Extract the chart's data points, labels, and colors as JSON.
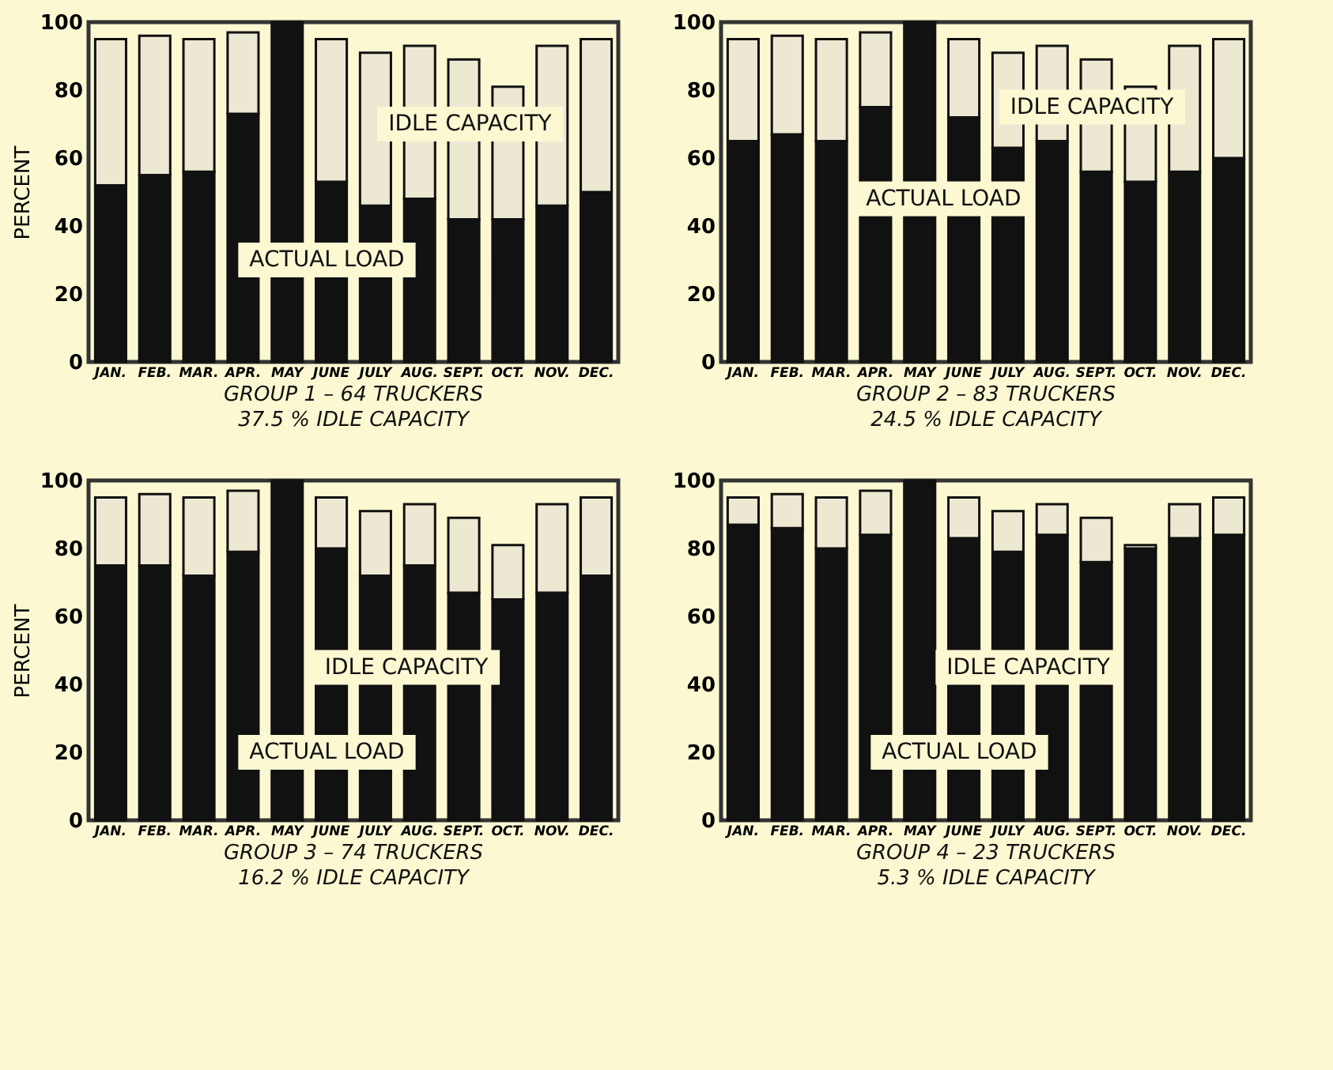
{
  "chart_data": [
    {
      "type": "bar",
      "title": "GROUP 1 – 64 TRUCKERS",
      "subtitle": "37.5 % IDLE CAPACITY",
      "ylabel": "PERCENT",
      "categories": [
        "JAN.",
        "FEB.",
        "MAR.",
        "APR.",
        "MAY",
        "JUNE",
        "JULY",
        "AUG.",
        "SEPT.",
        "OCT.",
        "NOV.",
        "DEC."
      ],
      "stacked": true,
      "ylim": [
        0,
        100
      ],
      "yticks": [
        0,
        20,
        40,
        60,
        80,
        100
      ],
      "series": [
        {
          "name": "ACTUAL LOAD",
          "color": "#111111",
          "values": [
            52,
            55,
            56,
            73,
            100,
            53,
            46,
            48,
            42,
            42,
            46,
            50
          ]
        },
        {
          "name": "IDLE CAPACITY",
          "color": "#ece8d2",
          "values": [
            43,
            41,
            39,
            24,
            null,
            42,
            45,
            45,
            47,
            39,
            47,
            45
          ]
        }
      ]
    },
    {
      "type": "bar",
      "title": "GROUP 2 – 83 TRUCKERS",
      "subtitle": "24.5 % IDLE CAPACITY",
      "categories": [
        "JAN.",
        "FEB.",
        "MAR.",
        "APR.",
        "MAY",
        "JUNE",
        "JULY",
        "AUG.",
        "SEPT.",
        "OCT.",
        "NOV.",
        "DEC."
      ],
      "stacked": true,
      "ylim": [
        0,
        100
      ],
      "yticks": [
        0,
        20,
        40,
        60,
        80,
        100
      ],
      "series": [
        {
          "name": "ACTUAL LOAD",
          "color": "#111111",
          "values": [
            65,
            67,
            65,
            75,
            100,
            72,
            63,
            65,
            56,
            53,
            56,
            60
          ]
        },
        {
          "name": "IDLE CAPACITY",
          "color": "#ece8d2",
          "values": [
            30,
            29,
            30,
            22,
            null,
            23,
            28,
            28,
            33,
            28,
            37,
            35
          ]
        }
      ]
    },
    {
      "type": "bar",
      "title": "GROUP 3 – 74 TRUCKERS",
      "subtitle": "16.2 % IDLE CAPACITY",
      "ylabel": "PERCENT",
      "categories": [
        "JAN.",
        "FEB.",
        "MAR.",
        "APR.",
        "MAY",
        "JUNE",
        "JULY",
        "AUG.",
        "SEPT.",
        "OCT.",
        "NOV.",
        "DEC."
      ],
      "stacked": true,
      "ylim": [
        0,
        100
      ],
      "yticks": [
        0,
        20,
        40,
        60,
        80,
        100
      ],
      "series": [
        {
          "name": "ACTUAL LOAD",
          "color": "#111111",
          "values": [
            75,
            75,
            72,
            79,
            100,
            80,
            72,
            75,
            67,
            65,
            67,
            72
          ]
        },
        {
          "name": "IDLE CAPACITY",
          "color": "#ece8d2",
          "values": [
            20,
            21,
            23,
            18,
            null,
            15,
            19,
            18,
            22,
            16,
            26,
            23
          ]
        }
      ]
    },
    {
      "type": "bar",
      "title": "GROUP 4 – 23 TRUCKERS",
      "subtitle": "5.3 % IDLE CAPACITY",
      "categories": [
        "JAN.",
        "FEB.",
        "MAR.",
        "APR.",
        "MAY",
        "JUNE",
        "JULY",
        "AUG.",
        "SEPT.",
        "OCT.",
        "NOV.",
        "DEC."
      ],
      "stacked": true,
      "ylim": [
        0,
        100
      ],
      "yticks": [
        0,
        20,
        40,
        60,
        80,
        100
      ],
      "series": [
        {
          "name": "ACTUAL LOAD",
          "color": "#111111",
          "values": [
            87,
            86,
            80,
            84,
            100,
            83,
            79,
            84,
            76,
            80,
            83,
            84
          ]
        },
        {
          "name": "IDLE CAPACITY",
          "color": "#ece8d2",
          "values": [
            8,
            10,
            15,
            13,
            null,
            12,
            12,
            9,
            13,
            1,
            10,
            11
          ]
        }
      ]
    }
  ]
}
